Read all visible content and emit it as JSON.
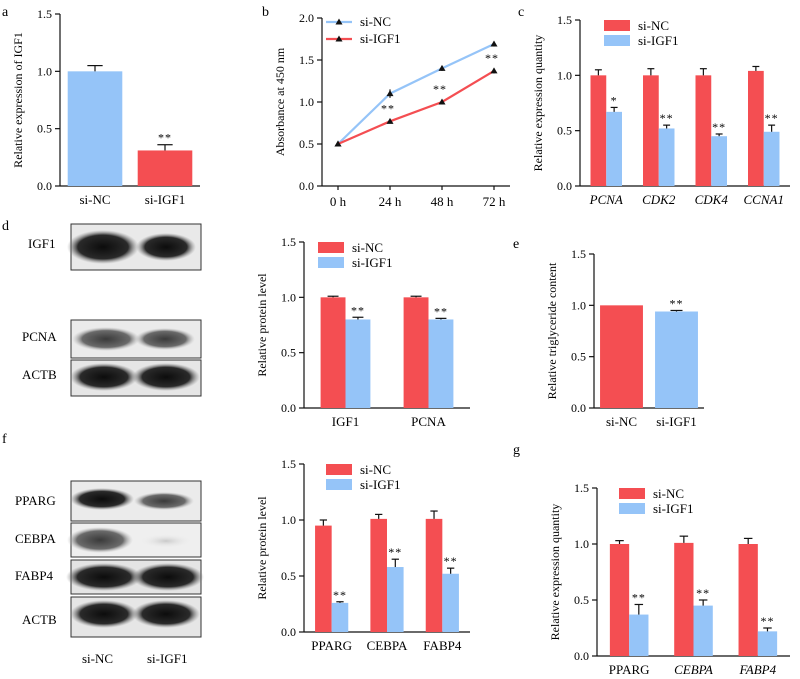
{
  "colors": {
    "red": "#f44e52",
    "blue": "#95c4f8",
    "ink": "#111111"
  },
  "panel_letters": {
    "a": "a",
    "b": "b",
    "c": "c",
    "d": "d",
    "e": "e",
    "f": "f",
    "g": "g"
  },
  "chart_data": [
    {
      "id": "a",
      "type": "bar",
      "ylabel": "Relative expression of IGF1",
      "ylim": [
        0,
        1.5
      ],
      "yticks": [
        "0.0",
        "0.5",
        "1.0",
        "1.5"
      ],
      "categories": [
        "si-NC",
        "si-IGF1"
      ],
      "values": [
        1.0,
        0.31
      ],
      "errors": [
        0.05,
        0.05
      ],
      "bar_colors": [
        "blue",
        "red"
      ],
      "significance": [
        "",
        "**"
      ]
    },
    {
      "id": "b",
      "type": "line",
      "ylabel": "Absorbance at 450 nm",
      "ylim": [
        0,
        2.0
      ],
      "yticks": [
        "0.0",
        "0.5",
        "1.0",
        "1.5",
        "2.0"
      ],
      "x": [
        "0 h",
        "24 h",
        "48 h",
        "72 h"
      ],
      "series": [
        {
          "name": "si-NC",
          "color": "blue",
          "values": [
            0.5,
            1.1,
            1.4,
            1.69
          ],
          "errors": [
            0.01,
            0.05,
            0.03,
            0.03
          ]
        },
        {
          "name": "si-IGF1",
          "color": "red",
          "values": [
            0.5,
            0.77,
            1.0,
            1.37
          ],
          "errors": [
            0.01,
            0.02,
            0.03,
            0.03
          ]
        }
      ],
      "significance": [
        "",
        "**",
        "**",
        "**"
      ],
      "legend": "top-left"
    },
    {
      "id": "c",
      "type": "bar",
      "ylabel": "Relative expression quantity",
      "ylim": [
        0,
        1.5
      ],
      "yticks": [
        "0.0",
        "0.5",
        "1.0",
        "1.5"
      ],
      "categories": [
        "PCNA",
        "CDK2",
        "CDK4",
        "CCNA1"
      ],
      "italic_categories": true,
      "series": [
        {
          "name": "si-NC",
          "color": "red",
          "values": [
            1.0,
            1.0,
            1.0,
            1.04
          ],
          "errors": [
            0.05,
            0.06,
            0.06,
            0.04
          ]
        },
        {
          "name": "si-IGF1",
          "color": "blue",
          "values": [
            0.67,
            0.52,
            0.45,
            0.49
          ],
          "errors": [
            0.04,
            0.03,
            0.02,
            0.06
          ]
        }
      ],
      "significance": [
        "*",
        "**",
        "**",
        "**"
      ],
      "legend": "top-left"
    },
    {
      "id": "d",
      "type": "bar",
      "ylabel": "Relative protein level",
      "ylim": [
        0,
        1.5
      ],
      "yticks": [
        "0.0",
        "0.5",
        "1.0",
        "1.5"
      ],
      "categories": [
        "IGF1",
        "PCNA"
      ],
      "italic_categories": false,
      "series": [
        {
          "name": "si-NC",
          "color": "red",
          "values": [
            1.0,
            1.0
          ],
          "errors": [
            0.01,
            0.01
          ]
        },
        {
          "name": "si-IGF1",
          "color": "blue",
          "values": [
            0.8,
            0.8
          ],
          "errors": [
            0.02,
            0.01
          ]
        }
      ],
      "significance": [
        "**",
        "**"
      ],
      "legend": "top-left"
    },
    {
      "id": "e",
      "type": "bar",
      "ylabel": "Relative triglyceride content",
      "ylim": [
        0,
        1.5
      ],
      "yticks": [
        "0.0",
        "0.5",
        "1.0",
        "1.5"
      ],
      "categories": [
        "si-NC",
        "si-IGF1"
      ],
      "values": [
        1.0,
        0.94
      ],
      "errors": [
        0.0,
        0.01
      ],
      "bar_colors": [
        "red",
        "blue"
      ],
      "significance": [
        "",
        "**"
      ]
    },
    {
      "id": "f",
      "type": "bar",
      "ylabel": "Relative protein level",
      "ylim": [
        0,
        1.5
      ],
      "yticks": [
        "0.0",
        "0.5",
        "1.0",
        "1.5"
      ],
      "categories": [
        "PPARG",
        "CEBPA",
        "FABP4"
      ],
      "italic_categories": false,
      "series": [
        {
          "name": "si-NC",
          "color": "red",
          "values": [
            0.95,
            1.01,
            1.01
          ],
          "errors": [
            0.05,
            0.04,
            0.07
          ]
        },
        {
          "name": "si-IGF1",
          "color": "blue",
          "values": [
            0.26,
            0.58,
            0.52
          ],
          "errors": [
            0.01,
            0.07,
            0.05
          ]
        }
      ],
      "significance": [
        "**",
        "**",
        "**"
      ],
      "legend": "top-left"
    },
    {
      "id": "g",
      "type": "bar",
      "ylabel": "Relative expression quantity",
      "ylim": [
        0,
        1.5
      ],
      "yticks": [
        "0.0",
        "0.5",
        "1.0",
        "1.5"
      ],
      "categories": [
        "PPARG",
        "CEBPA",
        "FABP4"
      ],
      "italic_flags": [
        false,
        true,
        true
      ],
      "series": [
        {
          "name": "si-NC",
          "color": "red",
          "values": [
            1.0,
            1.01,
            1.0
          ],
          "errors": [
            0.03,
            0.06,
            0.05
          ]
        },
        {
          "name": "si-IGF1",
          "color": "blue",
          "values": [
            0.37,
            0.45,
            0.22
          ],
          "errors": [
            0.09,
            0.05,
            0.03
          ]
        }
      ],
      "significance": [
        "**",
        "**",
        "**"
      ],
      "legend": "top-left"
    }
  ],
  "blots": {
    "d": {
      "rows": [
        "IGF1",
        "PCNA",
        "ACTB"
      ]
    },
    "f": {
      "rows": [
        "PPARG",
        "CEBPA",
        "FABP4",
        "ACTB"
      ],
      "lanes": [
        "si-NC",
        "si-IGF1"
      ]
    }
  }
}
